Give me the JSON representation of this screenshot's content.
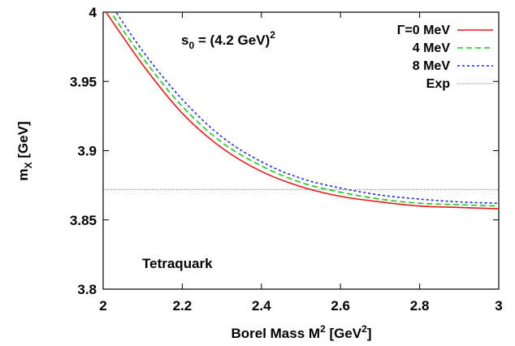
{
  "chart_data": {
    "type": "line",
    "xlim": [
      2,
      3
    ],
    "ylim": [
      3.8,
      4.0
    ],
    "grid": false,
    "legend_position": "top-right",
    "xticks": [
      "2",
      "2.2",
      "2.4",
      "2.6",
      "2.8",
      "3"
    ],
    "yticks": [
      "3.8",
      "3.85",
      "3.9",
      "3.95",
      "4"
    ],
    "xlabel": {
      "main": "Borel Mass M",
      "sup": "2",
      "unit_open": " [GeV",
      "unit_sup": "2",
      "unit_close": "]"
    },
    "ylabel": {
      "main": "m",
      "sub": "X",
      "unit": " [GeV]"
    },
    "annotations": {
      "s0": {
        "main": "s",
        "sub": "0",
        "rest": " = (4.2 GeV)",
        "sup": "2"
      },
      "label": "Tetraquark"
    },
    "series": [
      {
        "name": "Γ=0 MeV",
        "color": "#e41a1c",
        "dash": "solid",
        "x": [
          2.0,
          2.1,
          2.2,
          2.3,
          2.4,
          2.5,
          2.6,
          2.7,
          2.8,
          2.9,
          3.0
        ],
        "y": [
          4.003,
          3.962,
          3.927,
          3.902,
          3.885,
          3.874,
          3.867,
          3.863,
          3.86,
          3.859,
          3.858
        ]
      },
      {
        "name": "4 MeV",
        "color": "#1fc51f",
        "dash": "dashed",
        "x": [
          2.0,
          2.1,
          2.2,
          2.3,
          2.4,
          2.5,
          2.6,
          2.7,
          2.8,
          2.9,
          3.0
        ],
        "y": [
          4.008,
          3.967,
          3.932,
          3.906,
          3.889,
          3.877,
          3.87,
          3.865,
          3.862,
          3.861,
          3.86
        ]
      },
      {
        "name": "8 MeV",
        "color": "#1f2bd6",
        "dash": "dotted",
        "x": [
          2.0,
          2.1,
          2.2,
          2.3,
          2.4,
          2.5,
          2.6,
          2.7,
          2.8,
          2.9,
          3.0
        ],
        "y": [
          4.014,
          3.972,
          3.937,
          3.91,
          3.892,
          3.88,
          3.873,
          3.868,
          3.865,
          3.863,
          3.862
        ]
      },
      {
        "name": "Exp",
        "color": "#333333",
        "dash": "fine-dotted",
        "x": [
          2.0,
          3.0
        ],
        "y": [
          3.872,
          3.872
        ]
      }
    ]
  }
}
